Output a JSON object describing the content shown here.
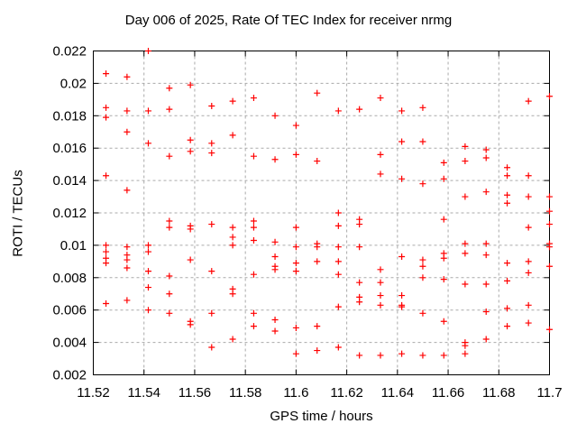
{
  "chart_data": {
    "type": "scatter",
    "title": "Day 006 of 2025, Rate Of TEC Index for receiver nrmg",
    "xlabel": "GPS time / hours",
    "ylabel": "ROTI / TECUs",
    "xlim": [
      11.52,
      11.7
    ],
    "ylim": [
      0.002,
      0.022
    ],
    "xtick_values": [
      11.52,
      11.54,
      11.56,
      11.58,
      11.6,
      11.62,
      11.64,
      11.66,
      11.68,
      11.7
    ],
    "xtick_labels": [
      "11.52",
      "11.54",
      "11.56",
      "11.58",
      "11.6",
      "11.62",
      "11.64",
      "11.66",
      "11.68",
      "11.7"
    ],
    "ytick_values": [
      0.002,
      0.004,
      0.006,
      0.008,
      0.01,
      0.012,
      0.014,
      0.016,
      0.018,
      0.02,
      0.022
    ],
    "ytick_labels": [
      "0.002",
      "0.004",
      "0.006",
      "0.008",
      "0.01",
      "0.012",
      "0.014",
      "0.016",
      "0.018",
      "0.02",
      "0.022"
    ],
    "grid": true,
    "legend": "none",
    "marker": {
      "shape": "plus",
      "color": "#ff0000",
      "size": 7
    },
    "colors": {
      "axis": "#000000",
      "grid": "#aaaaaa",
      "background": "#ffffff",
      "text": "#000000"
    },
    "points": [
      [
        11.525,
        0.0206
      ],
      [
        11.5333,
        0.0204
      ],
      [
        11.5417,
        0.022
      ],
      [
        11.55,
        0.0197
      ],
      [
        11.5583,
        0.0199
      ],
      [
        11.525,
        0.0185
      ],
      [
        11.5333,
        0.0183
      ],
      [
        11.5417,
        0.0183
      ],
      [
        11.55,
        0.0184
      ],
      [
        11.5667,
        0.0186
      ],
      [
        11.575,
        0.0189
      ],
      [
        11.525,
        0.0179
      ],
      [
        11.5333,
        0.017
      ],
      [
        11.575,
        0.0168
      ],
      [
        11.5417,
        0.0163
      ],
      [
        11.5583,
        0.0165
      ],
      [
        11.5583,
        0.0158
      ],
      [
        11.5667,
        0.0163
      ],
      [
        11.5667,
        0.0157
      ],
      [
        11.55,
        0.0155
      ],
      [
        11.525,
        0.0143
      ],
      [
        11.5333,
        0.0134
      ],
      [
        11.5833,
        0.0191
      ],
      [
        11.6083,
        0.0194
      ],
      [
        11.6167,
        0.0183
      ],
      [
        11.625,
        0.0184
      ],
      [
        11.6333,
        0.0191
      ],
      [
        11.6417,
        0.0183
      ],
      [
        11.5917,
        0.018
      ],
      [
        11.6,
        0.0174
      ],
      [
        11.6417,
        0.0164
      ],
      [
        11.5833,
        0.0155
      ],
      [
        11.5917,
        0.0153
      ],
      [
        11.6,
        0.0156
      ],
      [
        11.6083,
        0.0152
      ],
      [
        11.6333,
        0.0156
      ],
      [
        11.6333,
        0.0144
      ],
      [
        11.6417,
        0.0141
      ],
      [
        11.65,
        0.0185
      ],
      [
        11.6917,
        0.0189
      ],
      [
        11.7,
        0.0192
      ],
      [
        11.65,
        0.0164
      ],
      [
        11.6667,
        0.0161
      ],
      [
        11.675,
        0.0159
      ],
      [
        11.675,
        0.0154
      ],
      [
        11.6667,
        0.0152
      ],
      [
        11.6583,
        0.0151
      ],
      [
        11.6583,
        0.0141
      ],
      [
        11.65,
        0.0138
      ],
      [
        11.6833,
        0.0148
      ],
      [
        11.6833,
        0.0143
      ],
      [
        11.6917,
        0.0143
      ],
      [
        11.7,
        0.013
      ],
      [
        11.7,
        0.0121
      ],
      [
        11.675,
        0.0133
      ],
      [
        11.6667,
        0.013
      ],
      [
        11.6833,
        0.0131
      ],
      [
        11.6833,
        0.0126
      ],
      [
        11.6917,
        0.013
      ],
      [
        11.55,
        0.0115
      ],
      [
        11.55,
        0.0111
      ],
      [
        11.5583,
        0.0112
      ],
      [
        11.5583,
        0.011
      ],
      [
        11.5667,
        0.0113
      ],
      [
        11.575,
        0.0111
      ],
      [
        11.575,
        0.0105
      ],
      [
        11.575,
        0.01
      ],
      [
        11.525,
        0.01
      ],
      [
        11.525,
        0.0096
      ],
      [
        11.525,
        0.0092
      ],
      [
        11.525,
        0.0089
      ],
      [
        11.5333,
        0.0099
      ],
      [
        11.5333,
        0.0094
      ],
      [
        11.5333,
        0.0091
      ],
      [
        11.5333,
        0.0086
      ],
      [
        11.5417,
        0.01
      ],
      [
        11.5417,
        0.0096
      ],
      [
        11.5583,
        0.0091
      ],
      [
        11.5417,
        0.0084
      ],
      [
        11.55,
        0.0081
      ],
      [
        11.5667,
        0.0084
      ],
      [
        11.5417,
        0.0074
      ],
      [
        11.55,
        0.007
      ],
      [
        11.575,
        0.0073
      ],
      [
        11.575,
        0.007
      ],
      [
        11.525,
        0.0064
      ],
      [
        11.5333,
        0.0066
      ],
      [
        11.5417,
        0.006
      ],
      [
        11.55,
        0.0058
      ],
      [
        11.5583,
        0.0053
      ],
      [
        11.5583,
        0.0051
      ],
      [
        11.5667,
        0.0058
      ],
      [
        11.575,
        0.0042
      ],
      [
        11.5667,
        0.0037
      ],
      [
        11.6167,
        0.012
      ],
      [
        11.5833,
        0.0115
      ],
      [
        11.5833,
        0.0111
      ],
      [
        11.6,
        0.0111
      ],
      [
        11.6167,
        0.0112
      ],
      [
        11.625,
        0.0116
      ],
      [
        11.625,
        0.0113
      ],
      [
        11.5833,
        0.0103
      ],
      [
        11.5917,
        0.0102
      ],
      [
        11.6,
        0.0099
      ],
      [
        11.6083,
        0.0101
      ],
      [
        11.6083,
        0.0099
      ],
      [
        11.6167,
        0.0099
      ],
      [
        11.625,
        0.0099
      ],
      [
        11.5917,
        0.0093
      ],
      [
        11.5917,
        0.0087
      ],
      [
        11.5917,
        0.0085
      ],
      [
        11.6,
        0.0089
      ],
      [
        11.6,
        0.0084
      ],
      [
        11.6083,
        0.009
      ],
      [
        11.6167,
        0.009
      ],
      [
        11.6167,
        0.0082
      ],
      [
        11.6417,
        0.0093
      ],
      [
        11.6333,
        0.0085
      ],
      [
        11.5833,
        0.0082
      ],
      [
        11.625,
        0.0077
      ],
      [
        11.6333,
        0.0077
      ],
      [
        11.6333,
        0.0069
      ],
      [
        11.625,
        0.0068
      ],
      [
        11.625,
        0.0065
      ],
      [
        11.6417,
        0.0069
      ],
      [
        11.6417,
        0.0063
      ],
      [
        11.6417,
        0.0062
      ],
      [
        11.6167,
        0.0062
      ],
      [
        11.6333,
        0.0063
      ],
      [
        11.5833,
        0.0058
      ],
      [
        11.5833,
        0.005
      ],
      [
        11.5917,
        0.0054
      ],
      [
        11.5917,
        0.0047
      ],
      [
        11.6,
        0.0049
      ],
      [
        11.6083,
        0.005
      ],
      [
        11.6167,
        0.0037
      ],
      [
        11.6,
        0.0033
      ],
      [
        11.6083,
        0.0035
      ],
      [
        11.625,
        0.0032
      ],
      [
        11.6333,
        0.0032
      ],
      [
        11.6417,
        0.0033
      ],
      [
        11.6583,
        0.0116
      ],
      [
        11.6917,
        0.0111
      ],
      [
        11.7,
        0.0113
      ],
      [
        11.6667,
        0.0101
      ],
      [
        11.6667,
        0.0095
      ],
      [
        11.675,
        0.0101
      ],
      [
        11.675,
        0.0094
      ],
      [
        11.7,
        0.0101
      ],
      [
        11.7,
        0.0099
      ],
      [
        11.65,
        0.0091
      ],
      [
        11.65,
        0.0087
      ],
      [
        11.65,
        0.008
      ],
      [
        11.6583,
        0.0095
      ],
      [
        11.6583,
        0.0092
      ],
      [
        11.6583,
        0.0079
      ],
      [
        11.6833,
        0.0089
      ],
      [
        11.6917,
        0.009
      ],
      [
        11.6917,
        0.0083
      ],
      [
        11.7,
        0.0087
      ],
      [
        11.6667,
        0.0076
      ],
      [
        11.675,
        0.0076
      ],
      [
        11.6833,
        0.0078
      ],
      [
        11.65,
        0.0058
      ],
      [
        11.6583,
        0.0053
      ],
      [
        11.675,
        0.0059
      ],
      [
        11.6833,
        0.0061
      ],
      [
        11.6917,
        0.0063
      ],
      [
        11.6833,
        0.005
      ],
      [
        11.6917,
        0.0052
      ],
      [
        11.7,
        0.0048
      ],
      [
        11.675,
        0.0042
      ],
      [
        11.6667,
        0.004
      ],
      [
        11.6667,
        0.0038
      ],
      [
        11.65,
        0.0032
      ],
      [
        11.6583,
        0.0032
      ],
      [
        11.6667,
        0.0033
      ]
    ]
  }
}
